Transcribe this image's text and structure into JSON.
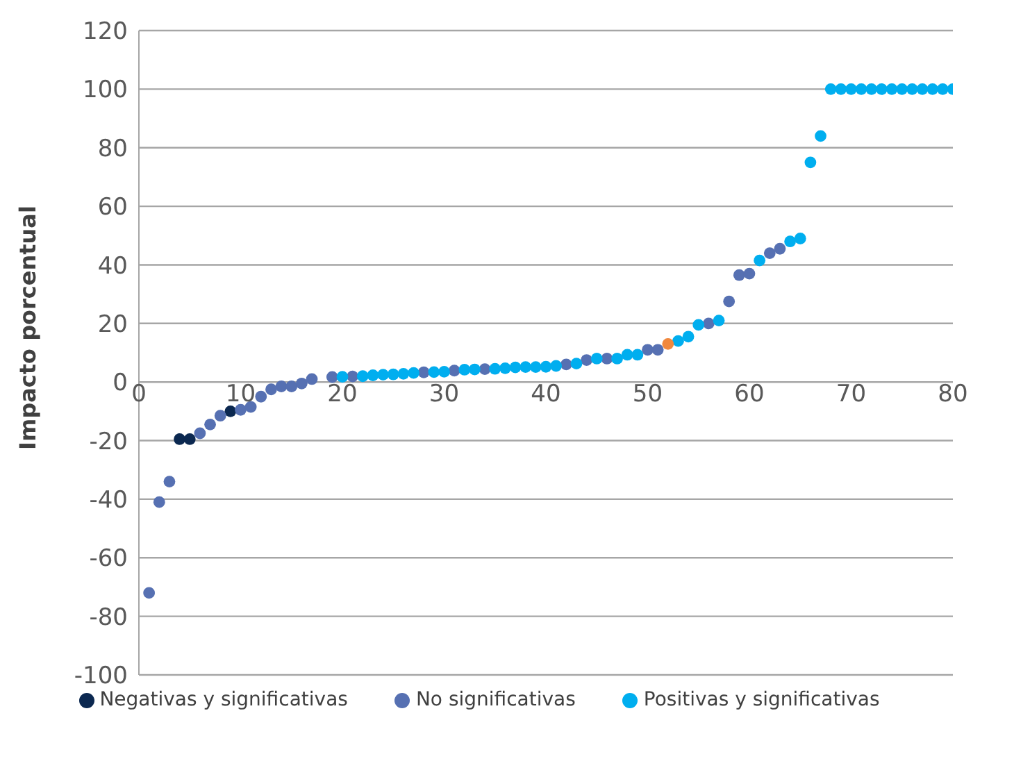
{
  "chart_data": {
    "type": "scatter",
    "ylabel": "Impacto porcentual",
    "xlim": [
      0,
      80
    ],
    "xticks": [
      0,
      10,
      20,
      30,
      40,
      50,
      60,
      70,
      80
    ],
    "ylim": [
      -100,
      120
    ],
    "yticks": [
      -100,
      -80,
      -60,
      -40,
      -20,
      0,
      20,
      40,
      60,
      80,
      100,
      120
    ],
    "grid": "y",
    "legend": "bottom",
    "marker": "circle",
    "series": [
      {
        "name": "Negativas y significativas",
        "color": "#0b2850",
        "x": [
          4,
          5,
          9
        ],
        "values": [
          -19.5,
          -19.5,
          -10
        ]
      },
      {
        "name": "No significativas",
        "color": "#5670b2",
        "x": [
          1,
          2,
          3,
          6,
          7,
          8,
          10,
          11,
          12,
          13,
          14,
          15,
          16,
          17,
          19,
          21,
          28,
          31,
          34,
          42,
          44,
          46,
          50,
          51,
          56,
          58,
          59,
          60,
          62,
          63
        ],
        "values": [
          -72,
          -41,
          -34,
          -17.5,
          -14.5,
          -11.5,
          -9.5,
          -8.5,
          -5,
          -2.5,
          -1.5,
          -1.5,
          -0.5,
          1,
          1.7,
          1.9,
          3.3,
          3.9,
          4.4,
          6,
          7.5,
          8,
          11,
          11,
          20,
          27.5,
          36.5,
          37,
          44,
          45.5
        ]
      },
      {
        "name": "Positivas y significativas",
        "color": "#00aeef",
        "x": [
          20,
          22,
          23,
          24,
          25,
          26,
          27,
          29,
          30,
          32,
          33,
          35,
          36,
          37,
          38,
          39,
          40,
          41,
          43,
          45,
          47,
          48,
          49,
          53,
          54,
          55,
          57,
          61,
          64,
          65,
          66,
          67,
          68,
          69,
          70,
          71,
          72,
          73,
          74,
          75,
          76,
          77,
          78,
          79,
          80
        ],
        "values": [
          1.8,
          2,
          2.3,
          2.5,
          2.6,
          2.8,
          3.1,
          3.4,
          3.5,
          4.2,
          4.3,
          4.5,
          4.7,
          5,
          5.1,
          5.1,
          5.2,
          5.5,
          6.3,
          8,
          8,
          9.3,
          9.3,
          14,
          15.5,
          19.5,
          21,
          41.5,
          48,
          49,
          75,
          84,
          100,
          100,
          100,
          100,
          100,
          100,
          100,
          100,
          100,
          100,
          100,
          100,
          100
        ]
      },
      {
        "color": "#f0883e",
        "x": [
          52
        ],
        "values": [
          13
        ]
      }
    ]
  }
}
